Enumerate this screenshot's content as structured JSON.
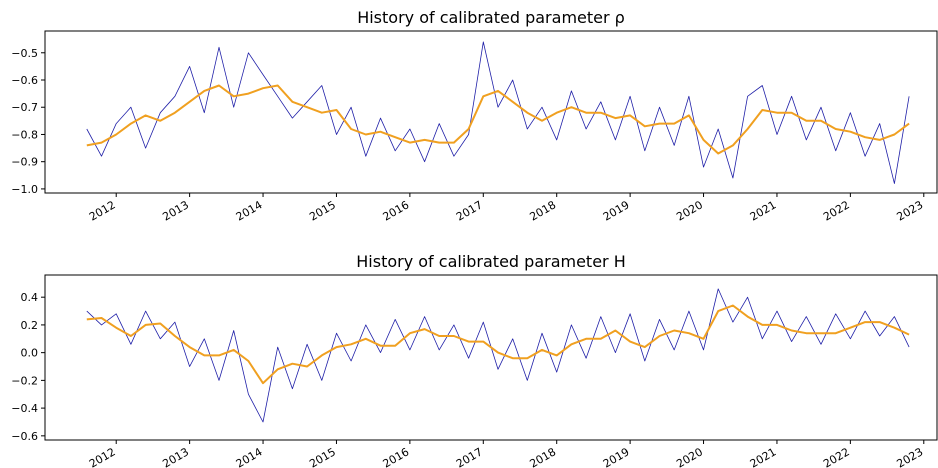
{
  "chart_data": [
    {
      "type": "line",
      "title": "History of calibrated parameter ρ",
      "x": [
        2011.6,
        2011.8,
        2012.0,
        2012.2,
        2012.4,
        2012.6,
        2012.8,
        2013.0,
        2013.2,
        2013.4,
        2013.6,
        2013.8,
        2014.0,
        2014.2,
        2014.4,
        2014.6,
        2014.8,
        2015.0,
        2015.2,
        2015.4,
        2015.6,
        2015.8,
        2016.0,
        2016.2,
        2016.4,
        2016.6,
        2016.8,
        2017.0,
        2017.2,
        2017.4,
        2017.6,
        2017.8,
        2018.0,
        2018.2,
        2018.4,
        2018.6,
        2018.8,
        2019.0,
        2019.2,
        2019.4,
        2019.6,
        2019.8,
        2020.0,
        2020.2,
        2020.4,
        2020.6,
        2020.8,
        2021.0,
        2021.2,
        2021.4,
        2021.6,
        2021.8,
        2022.0,
        2022.2,
        2022.4,
        2022.6,
        2022.8
      ],
      "series": [
        {
          "color": "#2020a8",
          "width": 0.8,
          "values": [
            -0.78,
            -0.88,
            -0.76,
            -0.7,
            -0.85,
            -0.72,
            -0.66,
            -0.55,
            -0.72,
            -0.48,
            -0.7,
            -0.5,
            -0.58,
            -0.66,
            -0.74,
            -0.68,
            -0.62,
            -0.8,
            -0.7,
            -0.88,
            -0.74,
            -0.86,
            -0.78,
            -0.9,
            -0.76,
            -0.88,
            -0.8,
            -0.46,
            -0.7,
            -0.6,
            -0.78,
            -0.7,
            -0.82,
            -0.64,
            -0.78,
            -0.68,
            -0.82,
            -0.66,
            -0.86,
            -0.7,
            -0.84,
            -0.66,
            -0.92,
            -0.78,
            -0.96,
            -0.66,
            -0.62,
            -0.8,
            -0.66,
            -0.82,
            -0.7,
            -0.86,
            -0.72,
            -0.88,
            -0.76,
            -0.98,
            -0.66
          ]
        },
        {
          "color": "#f0a020",
          "width": 2,
          "values": [
            -0.84,
            -0.83,
            -0.8,
            -0.76,
            -0.73,
            -0.75,
            -0.72,
            -0.68,
            -0.64,
            -0.62,
            -0.66,
            -0.65,
            -0.63,
            -0.62,
            -0.68,
            -0.7,
            -0.72,
            -0.71,
            -0.78,
            -0.8,
            -0.79,
            -0.81,
            -0.83,
            -0.82,
            -0.83,
            -0.83,
            -0.78,
            -0.66,
            -0.64,
            -0.68,
            -0.72,
            -0.75,
            -0.72,
            -0.7,
            -0.72,
            -0.72,
            -0.74,
            -0.73,
            -0.77,
            -0.76,
            -0.76,
            -0.73,
            -0.82,
            -0.87,
            -0.84,
            -0.78,
            -0.71,
            -0.72,
            -0.72,
            -0.75,
            -0.75,
            -0.78,
            -0.79,
            -0.81,
            -0.82,
            -0.8,
            -0.76
          ]
        }
      ],
      "xlim": [
        2011.03,
        2023.18
      ],
      "xticks": [
        2012,
        2013,
        2014,
        2015,
        2016,
        2017,
        2018,
        2019,
        2020,
        2021,
        2022,
        2023
      ],
      "ylim": [
        -1.015,
        -0.42
      ],
      "yticks": [
        {
          "value": -0.5,
          "label": "−0.5"
        },
        {
          "value": -0.6,
          "label": "−0.6"
        },
        {
          "value": -0.7,
          "label": "−0.7"
        },
        {
          "value": -0.8,
          "label": "−0.8"
        },
        {
          "value": -0.9,
          "label": "−0.9"
        },
        {
          "value": -1.0,
          "label": "−1.0"
        }
      ]
    },
    {
      "type": "line",
      "title": "History of calibrated parameter H",
      "x": [
        2011.6,
        2011.8,
        2012.0,
        2012.2,
        2012.4,
        2012.6,
        2012.8,
        2013.0,
        2013.2,
        2013.4,
        2013.6,
        2013.8,
        2014.0,
        2014.2,
        2014.4,
        2014.6,
        2014.8,
        2015.0,
        2015.2,
        2015.4,
        2015.6,
        2015.8,
        2016.0,
        2016.2,
        2016.4,
        2016.6,
        2016.8,
        2017.0,
        2017.2,
        2017.4,
        2017.6,
        2017.8,
        2018.0,
        2018.2,
        2018.4,
        2018.6,
        2018.8,
        2019.0,
        2019.2,
        2019.4,
        2019.6,
        2019.8,
        2020.0,
        2020.2,
        2020.4,
        2020.6,
        2020.8,
        2021.0,
        2021.2,
        2021.4,
        2021.6,
        2021.8,
        2022.0,
        2022.2,
        2022.4,
        2022.6,
        2022.8
      ],
      "series": [
        {
          "color": "#2020a8",
          "width": 0.8,
          "values": [
            0.3,
            0.2,
            0.28,
            0.06,
            0.3,
            0.1,
            0.22,
            -0.1,
            0.1,
            -0.2,
            0.16,
            -0.3,
            -0.5,
            0.04,
            -0.26,
            0.06,
            -0.2,
            0.14,
            -0.06,
            0.2,
            0.0,
            0.24,
            0.02,
            0.26,
            0.02,
            0.2,
            -0.04,
            0.22,
            -0.12,
            0.1,
            -0.2,
            0.14,
            -0.14,
            0.2,
            -0.04,
            0.26,
            0.0,
            0.28,
            -0.06,
            0.24,
            0.02,
            0.3,
            0.02,
            0.46,
            0.22,
            0.4,
            0.1,
            0.3,
            0.08,
            0.26,
            0.06,
            0.28,
            0.1,
            0.3,
            0.12,
            0.26,
            0.04
          ]
        },
        {
          "color": "#f0a020",
          "width": 2,
          "values": [
            0.24,
            0.25,
            0.18,
            0.12,
            0.2,
            0.21,
            0.12,
            0.04,
            -0.02,
            -0.02,
            0.02,
            -0.06,
            -0.22,
            -0.12,
            -0.08,
            -0.1,
            -0.02,
            0.04,
            0.06,
            0.1,
            0.05,
            0.05,
            0.14,
            0.17,
            0.12,
            0.12,
            0.08,
            0.08,
            0.0,
            -0.04,
            -0.04,
            0.02,
            -0.02,
            0.06,
            0.1,
            0.1,
            0.16,
            0.08,
            0.04,
            0.12,
            0.16,
            0.14,
            0.1,
            0.3,
            0.34,
            0.26,
            0.2,
            0.2,
            0.16,
            0.14,
            0.14,
            0.14,
            0.18,
            0.22,
            0.22,
            0.18,
            0.13
          ]
        }
      ],
      "xlim": [
        2011.03,
        2023.18
      ],
      "xticks": [
        2012,
        2013,
        2014,
        2015,
        2016,
        2017,
        2018,
        2019,
        2020,
        2021,
        2022,
        2023
      ],
      "ylim": [
        -0.63,
        0.56
      ],
      "yticks": [
        0.4,
        0.2,
        {
          "value": 0.0,
          "label": "0.0"
        },
        {
          "value": -0.2,
          "label": "−0.2"
        },
        {
          "value": -0.4,
          "label": "−0.4"
        },
        {
          "value": -0.6,
          "label": "−0.6"
        }
      ]
    }
  ]
}
